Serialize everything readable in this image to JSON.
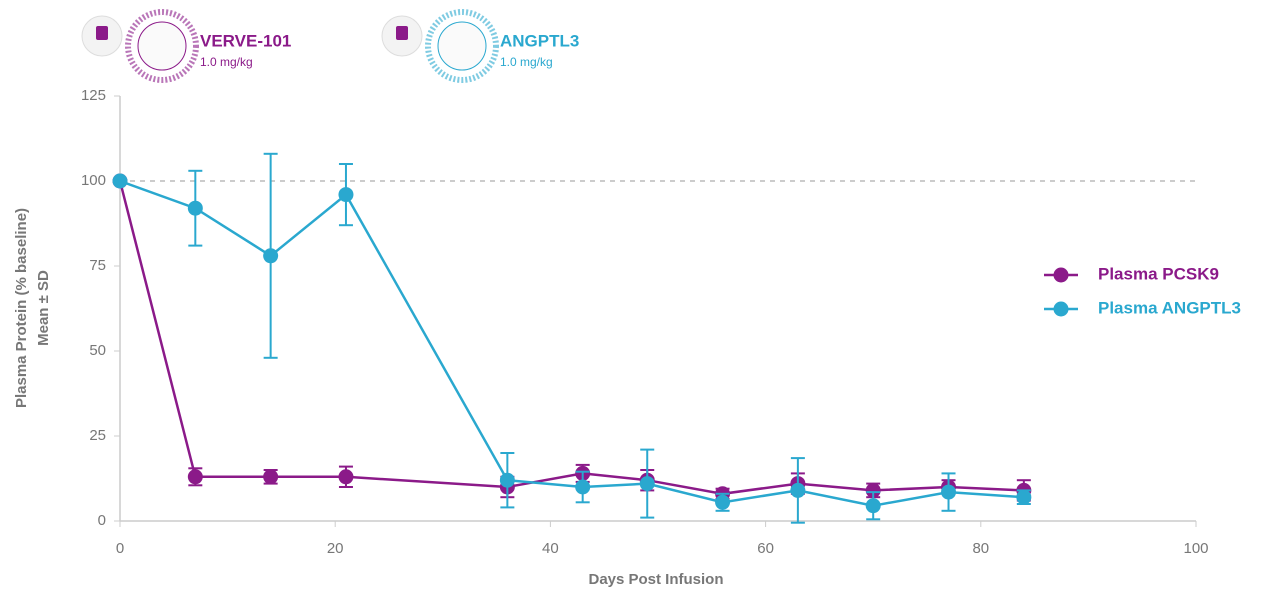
{
  "chart_data": {
    "type": "line",
    "xlabel": "Days Post Infusion",
    "ylabel": [
      "Plasma Protein (% baseline)",
      "Mean ± SD"
    ],
    "xlim": [
      0,
      100
    ],
    "xticks": [
      0,
      20,
      40,
      60,
      80,
      100
    ],
    "ylim": [
      0,
      125
    ],
    "yticks": [
      0,
      25,
      50,
      75,
      100,
      125
    ],
    "reference_line": 100,
    "legend_position": "right",
    "annotations": [
      {
        "text": "VERVE-101",
        "subtext": "1.0 mg/kg",
        "color": "#8b1a89"
      },
      {
        "text": "ANGPTL3",
        "subtext": "1.0 mg/kg",
        "color": "#2aa8cf"
      }
    ],
    "x": [
      0,
      7,
      14,
      21,
      36,
      43,
      49,
      56,
      63,
      70,
      77,
      84
    ],
    "series": [
      {
        "name": "Plasma PCSK9",
        "color": "#8b1a89",
        "values": [
          100,
          13,
          13,
          13,
          10,
          14,
          12,
          8,
          11,
          9,
          10,
          9
        ],
        "errors": [
          0,
          2.5,
          2,
          3,
          3,
          2.5,
          3,
          1.5,
          3,
          2,
          2,
          3
        ]
      },
      {
        "name": "Plasma ANGPTL3",
        "color": "#2aa8cf",
        "values": [
          100,
          92,
          78,
          96,
          12,
          10,
          11,
          5.5,
          9,
          4.5,
          8.5,
          7
        ],
        "errors": [
          0,
          11,
          30,
          9,
          8,
          4.5,
          10,
          2.5,
          9.5,
          4,
          5.5,
          2
        ]
      }
    ]
  }
}
